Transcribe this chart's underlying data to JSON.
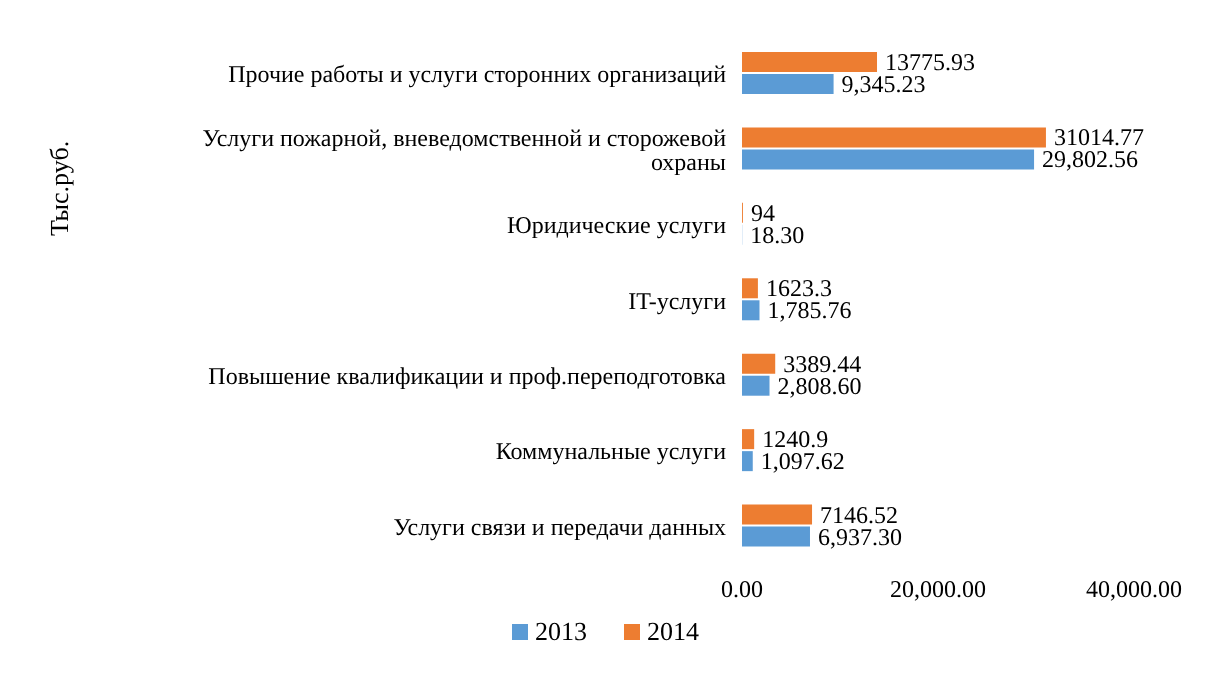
{
  "chart_data": {
    "type": "bar",
    "orientation": "horizontal",
    "annotations": [
      "Тыс.руб."
    ],
    "categories": [
      "Прочие работы и услуги сторонних организаций",
      "Услуги пожарной, вневедомственной и сторожевой охраны",
      "Юридические услуги",
      "IT-услуги",
      "Повышение квалификации и проф.переподготовка",
      "Коммунальные услуги",
      "Услуги связи и передачи данных"
    ],
    "series": [
      {
        "name": "2013",
        "color": "#5b9bd5",
        "values": [
          9345.23,
          29802.56,
          18.3,
          1785.76,
          2808.6,
          1097.62,
          6937.3
        ],
        "value_labels": [
          "9,345.23",
          "29,802.56",
          "18.30",
          "1,785.76",
          "2,808.60",
          "1,097.62",
          "6,937.30"
        ]
      },
      {
        "name": "2014",
        "color": "#ed7d31",
        "values": [
          13775.93,
          31014.77,
          94,
          1623.3,
          3389.44,
          1240.9,
          7146.52
        ],
        "value_labels": [
          "13775.93",
          "31014.77",
          "94",
          "1623.3",
          "3389.44",
          "1240.9",
          "7146.52"
        ]
      }
    ],
    "xlim": [
      0,
      40000
    ],
    "xticks": [
      {
        "value": 0,
        "label": "0.00"
      },
      {
        "value": 20000,
        "label": "20,000.00"
      },
      {
        "value": 40000,
        "label": "40,000.00"
      }
    ],
    "legend": "bottom"
  }
}
